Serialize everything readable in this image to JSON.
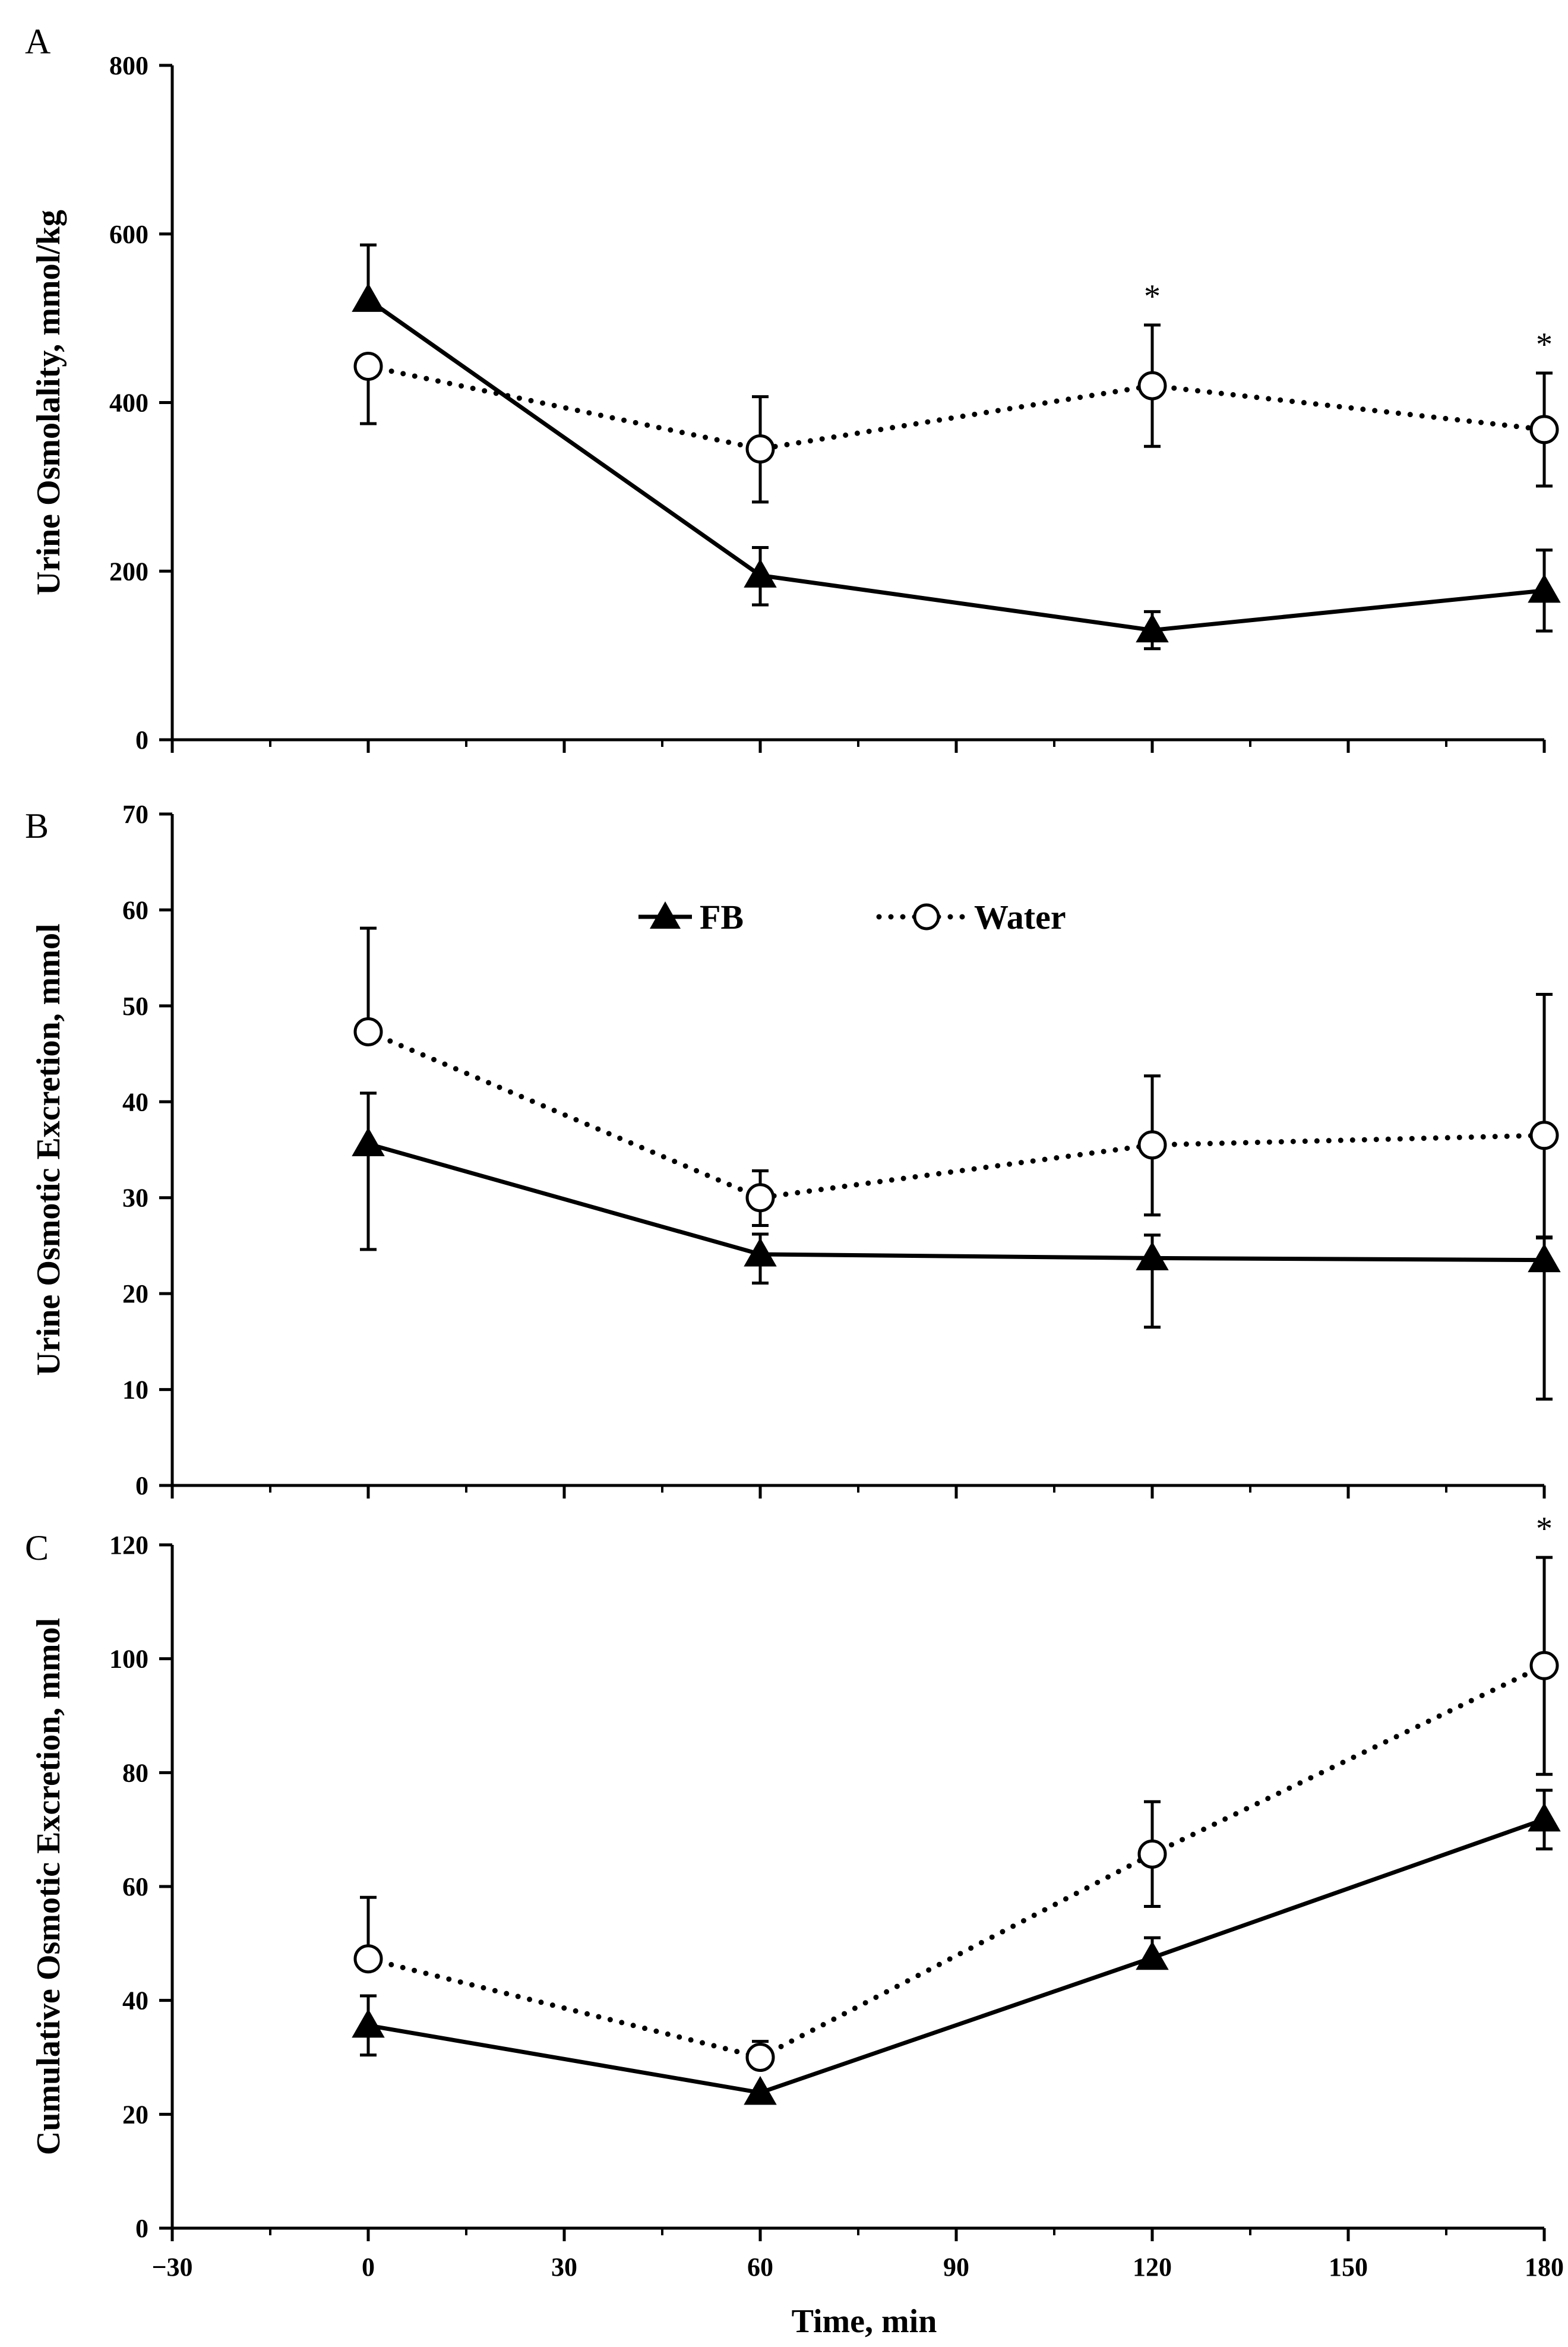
{
  "chart_data": [
    {
      "type": "line",
      "panel_label": "A",
      "ylabel": "Urine Osmolality, mmol/kg",
      "xlabel": "",
      "ylim": [
        0,
        800
      ],
      "yticks": [
        0,
        200,
        400,
        600,
        800
      ],
      "xlim": [
        -30,
        180
      ],
      "xticks": [
        -30,
        0,
        30,
        60,
        90,
        120,
        150,
        180
      ],
      "show_x_tick_labels": false,
      "legend": false,
      "series": [
        {
          "name": "FB",
          "style": "solid",
          "marker": "triangle-filled",
          "x": [
            0,
            60,
            120,
            180
          ],
          "y": [
            522,
            195,
            130,
            177
          ],
          "err_low": [
            0,
            35,
            22,
            48
          ],
          "err_high": [
            65,
            33,
            22,
            48
          ]
        },
        {
          "name": "Water",
          "style": "dotted",
          "marker": "circle-open",
          "x": [
            0,
            60,
            120,
            180
          ],
          "y": [
            443,
            345,
            420,
            368
          ],
          "err_low": [
            68,
            63,
            72,
            67
          ],
          "err_high": [
            0,
            62,
            72,
            67
          ]
        }
      ],
      "annotations": [
        {
          "x": 120,
          "text": "*"
        },
        {
          "x": 180,
          "text": "*"
        }
      ]
    },
    {
      "type": "line",
      "panel_label": "B",
      "ylabel": "Urine Osmotic Excretion, mmol",
      "xlabel": "",
      "ylim": [
        0,
        70
      ],
      "yticks": [
        0,
        10,
        20,
        30,
        40,
        50,
        60,
        70
      ],
      "xlim": [
        -30,
        180
      ],
      "xticks": [
        -30,
        0,
        30,
        60,
        90,
        120,
        150,
        180
      ],
      "show_x_tick_labels": false,
      "legend": true,
      "legend_position": "top-center",
      "series": [
        {
          "name": "FB",
          "style": "solid",
          "marker": "triangle-filled",
          "x": [
            0,
            60,
            120,
            180
          ],
          "y": [
            35.6,
            24.1,
            23.7,
            23.5
          ],
          "err_low": [
            11,
            3,
            7.2,
            14.5
          ],
          "err_high": [
            5.3,
            2.1,
            2.4,
            2.4
          ]
        },
        {
          "name": "Water",
          "style": "dotted",
          "marker": "circle-open",
          "x": [
            0,
            60,
            120,
            180
          ],
          "y": [
            47.3,
            30.0,
            35.5,
            36.5
          ],
          "err_low": [
            0,
            2.9,
            7.3,
            10.7
          ],
          "err_high": [
            10.8,
            2.8,
            7.2,
            14.7
          ]
        }
      ],
      "annotations": []
    },
    {
      "type": "line",
      "panel_label": "C",
      "ylabel": "Cumulative Osmotic Excretion, mmol",
      "xlabel": "Time, min",
      "ylim": [
        0,
        120
      ],
      "yticks": [
        0,
        20,
        40,
        60,
        80,
        100,
        120
      ],
      "xlim": [
        -30,
        180
      ],
      "xticks": [
        -30,
        0,
        30,
        60,
        90,
        120,
        150,
        180
      ],
      "xtick_labels": [
        "−30",
        "0",
        "30",
        "60",
        "90",
        "120",
        "150",
        "180"
      ],
      "show_x_tick_labels": true,
      "legend": false,
      "series": [
        {
          "name": "FB",
          "style": "solid",
          "marker": "triangle-filled",
          "x": [
            0,
            60,
            120,
            180
          ],
          "y": [
            35.6,
            23.8,
            47.5,
            71.8
          ],
          "err_low": [
            5.2,
            0,
            0,
            5.2
          ],
          "err_high": [
            5.2,
            0,
            3.5,
            5.1
          ]
        },
        {
          "name": "Water",
          "style": "dotted",
          "marker": "circle-open",
          "x": [
            0,
            60,
            120,
            180
          ],
          "y": [
            47.3,
            30.0,
            65.7,
            98.8
          ],
          "err_low": [
            0,
            0,
            9.2,
            19.1
          ],
          "err_high": [
            10.8,
            2.8,
            9.2,
            19.0
          ]
        }
      ],
      "annotations": [
        {
          "x": 180,
          "text": "*"
        }
      ]
    }
  ],
  "legend": {
    "fb_label": "FB",
    "water_label": "Water"
  }
}
